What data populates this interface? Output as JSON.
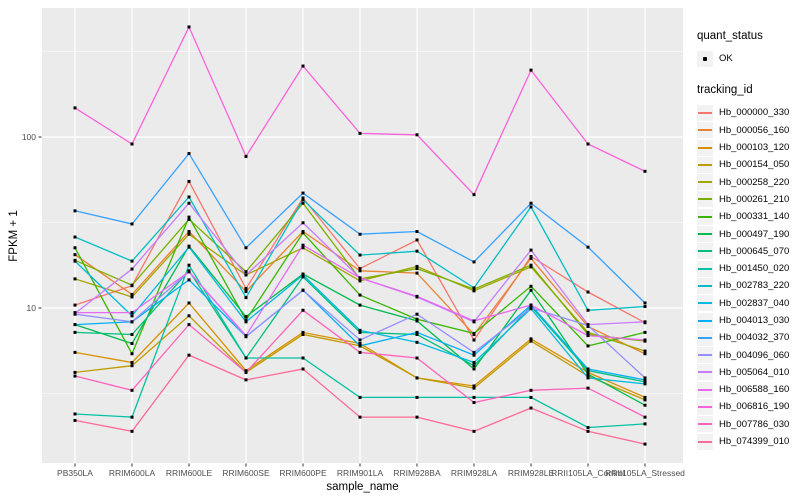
{
  "chart_data": {
    "type": "line",
    "title": "",
    "xlabel": "sample_name",
    "ylabel": "FPKM + 1",
    "y_scale": "log10",
    "ylim": [
      1.25,
      570
    ],
    "y_major_ticks": [
      10,
      100
    ],
    "y_minor_gridlines": [
      3.162,
      31.62,
      316.2
    ],
    "grid": true,
    "legend_position": "right",
    "panel_background": "#EBEBEB",
    "gridline_color": "#FFFFFF",
    "tick_label_color": "#4D4D4D",
    "point_color": "#000000",
    "point_shape": "small-black-square",
    "categories": [
      "PB350LA",
      "RRIM600LA",
      "RRIM600LE",
      "RRIM600SE",
      "RRIM600PE",
      "RRIM901LA",
      "RRIM928BA",
      "RRIM928LA",
      "RRIM928LE",
      "RRII105LA_Control",
      "RRII105LA_Stressed"
    ],
    "series": [
      {
        "name": "Hb_000000_330",
        "color": "#F8766D",
        "values": [
          10.4,
          13.5,
          55,
          13,
          44,
          17,
          25,
          6.5,
          20,
          12.4,
          8.2
        ]
      },
      {
        "name": "Hb_000056_160",
        "color": "#EA8331",
        "values": [
          20.5,
          12,
          28,
          12.5,
          28,
          16.5,
          16,
          7,
          19.5,
          7.8,
          5.4
        ]
      },
      {
        "name": "Hb_000103_120",
        "color": "#D89000",
        "values": [
          5.5,
          4.8,
          10.7,
          4.3,
          7.2,
          6.2,
          3.9,
          3.5,
          6.6,
          4.2,
          3.0
        ]
      },
      {
        "name": "Hb_000154_050",
        "color": "#C09B00",
        "values": [
          4.2,
          4.6,
          9.0,
          4.2,
          7.0,
          6.0,
          3.9,
          3.4,
          6.4,
          4.0,
          2.9
        ]
      },
      {
        "name": "Hb_000258_220",
        "color": "#A3A500",
        "values": [
          14.8,
          11.6,
          27,
          15.6,
          22.5,
          14.4,
          17.5,
          12.6,
          17.4,
          7.2,
          5.6
        ]
      },
      {
        "name": "Hb_000261_210",
        "color": "#7CAE00",
        "values": [
          19,
          13.6,
          33,
          16.3,
          41,
          14.8,
          17,
          12.9,
          17.8,
          7.0,
          6.4
        ]
      },
      {
        "name": "Hb_000331_140",
        "color": "#39B600",
        "values": [
          22.5,
          5.4,
          34,
          8.5,
          27.5,
          11.9,
          8.6,
          7.1,
          13.4,
          6.0,
          7.2
        ]
      },
      {
        "name": "Hb_000497_190",
        "color": "#00BB4E",
        "values": [
          8.0,
          6.2,
          23,
          8.9,
          15.8,
          10.4,
          8.4,
          4.4,
          12.7,
          4.1,
          2.7
        ]
      },
      {
        "name": "Hb_000645_070",
        "color": "#00BF7D",
        "values": [
          7.2,
          7.0,
          16.5,
          5.1,
          15.2,
          7.2,
          7.0,
          4.6,
          10.2,
          4.3,
          3.7
        ]
      },
      {
        "name": "Hb_001450_020",
        "color": "#00C1A3",
        "values": [
          2.4,
          2.3,
          17.8,
          5.1,
          5.1,
          3.0,
          3.0,
          3.0,
          3.0,
          2.0,
          2.1
        ]
      },
      {
        "name": "Hb_002783_220",
        "color": "#00BFC4",
        "values": [
          26,
          18.8,
          44.6,
          11.5,
          43,
          20.4,
          21.5,
          13.1,
          39,
          9.7,
          10.2
        ]
      },
      {
        "name": "Hb_002837_040",
        "color": "#00BAE0",
        "values": [
          18.8,
          9.0,
          22.7,
          8.3,
          15.6,
          7.4,
          6.3,
          4.8,
          9.9,
          3.9,
          3.6
        ]
      },
      {
        "name": "Hb_004013_030",
        "color": "#00B0F6",
        "values": [
          8.0,
          8.3,
          14.6,
          6.8,
          12.7,
          6.0,
          7.2,
          5.3,
          10.4,
          4.4,
          3.8
        ]
      },
      {
        "name": "Hb_004032_370",
        "color": "#35A2FF",
        "values": [
          37,
          31,
          80,
          22.5,
          47,
          27,
          28,
          18.6,
          41,
          22.7,
          10.7
        ]
      },
      {
        "name": "Hb_004096_060",
        "color": "#9590FF",
        "values": [
          9.2,
          8.3,
          16.3,
          6.8,
          12.7,
          6.5,
          9.2,
          5.5,
          10.0,
          7.9,
          3.9
        ]
      },
      {
        "name": "Hb_005064_010",
        "color": "#C77CFF",
        "values": [
          9.3,
          16.9,
          41,
          15.6,
          31.5,
          15.0,
          11.6,
          8.3,
          21.8,
          8.0,
          8.3
        ]
      },
      {
        "name": "Hb_006588_160",
        "color": "#E76BF3",
        "values": [
          9.4,
          9.4,
          16.3,
          6.9,
          23.3,
          15.0,
          11.7,
          8.4,
          10.4,
          6.9,
          6.5
        ]
      },
      {
        "name": "Hb_006816_190",
        "color": "#FA62DB",
        "values": [
          148,
          91,
          440,
          77,
          260,
          105,
          103,
          46,
          246,
          91,
          63
        ]
      },
      {
        "name": "Hb_007786_030",
        "color": "#FF62BC",
        "values": [
          4.0,
          3.3,
          8.0,
          4.2,
          9.7,
          5.5,
          5.1,
          2.8,
          3.3,
          3.4,
          2.3
        ]
      },
      {
        "name": "Hb_074399_010",
        "color": "#FF6A98",
        "values": [
          2.2,
          1.9,
          5.3,
          3.8,
          4.4,
          2.3,
          2.3,
          1.9,
          2.6,
          1.9,
          1.6
        ]
      }
    ],
    "legend": {
      "quant_status_title": "quant_status",
      "ok_label": "OK",
      "tracking_title": "tracking_id"
    }
  }
}
